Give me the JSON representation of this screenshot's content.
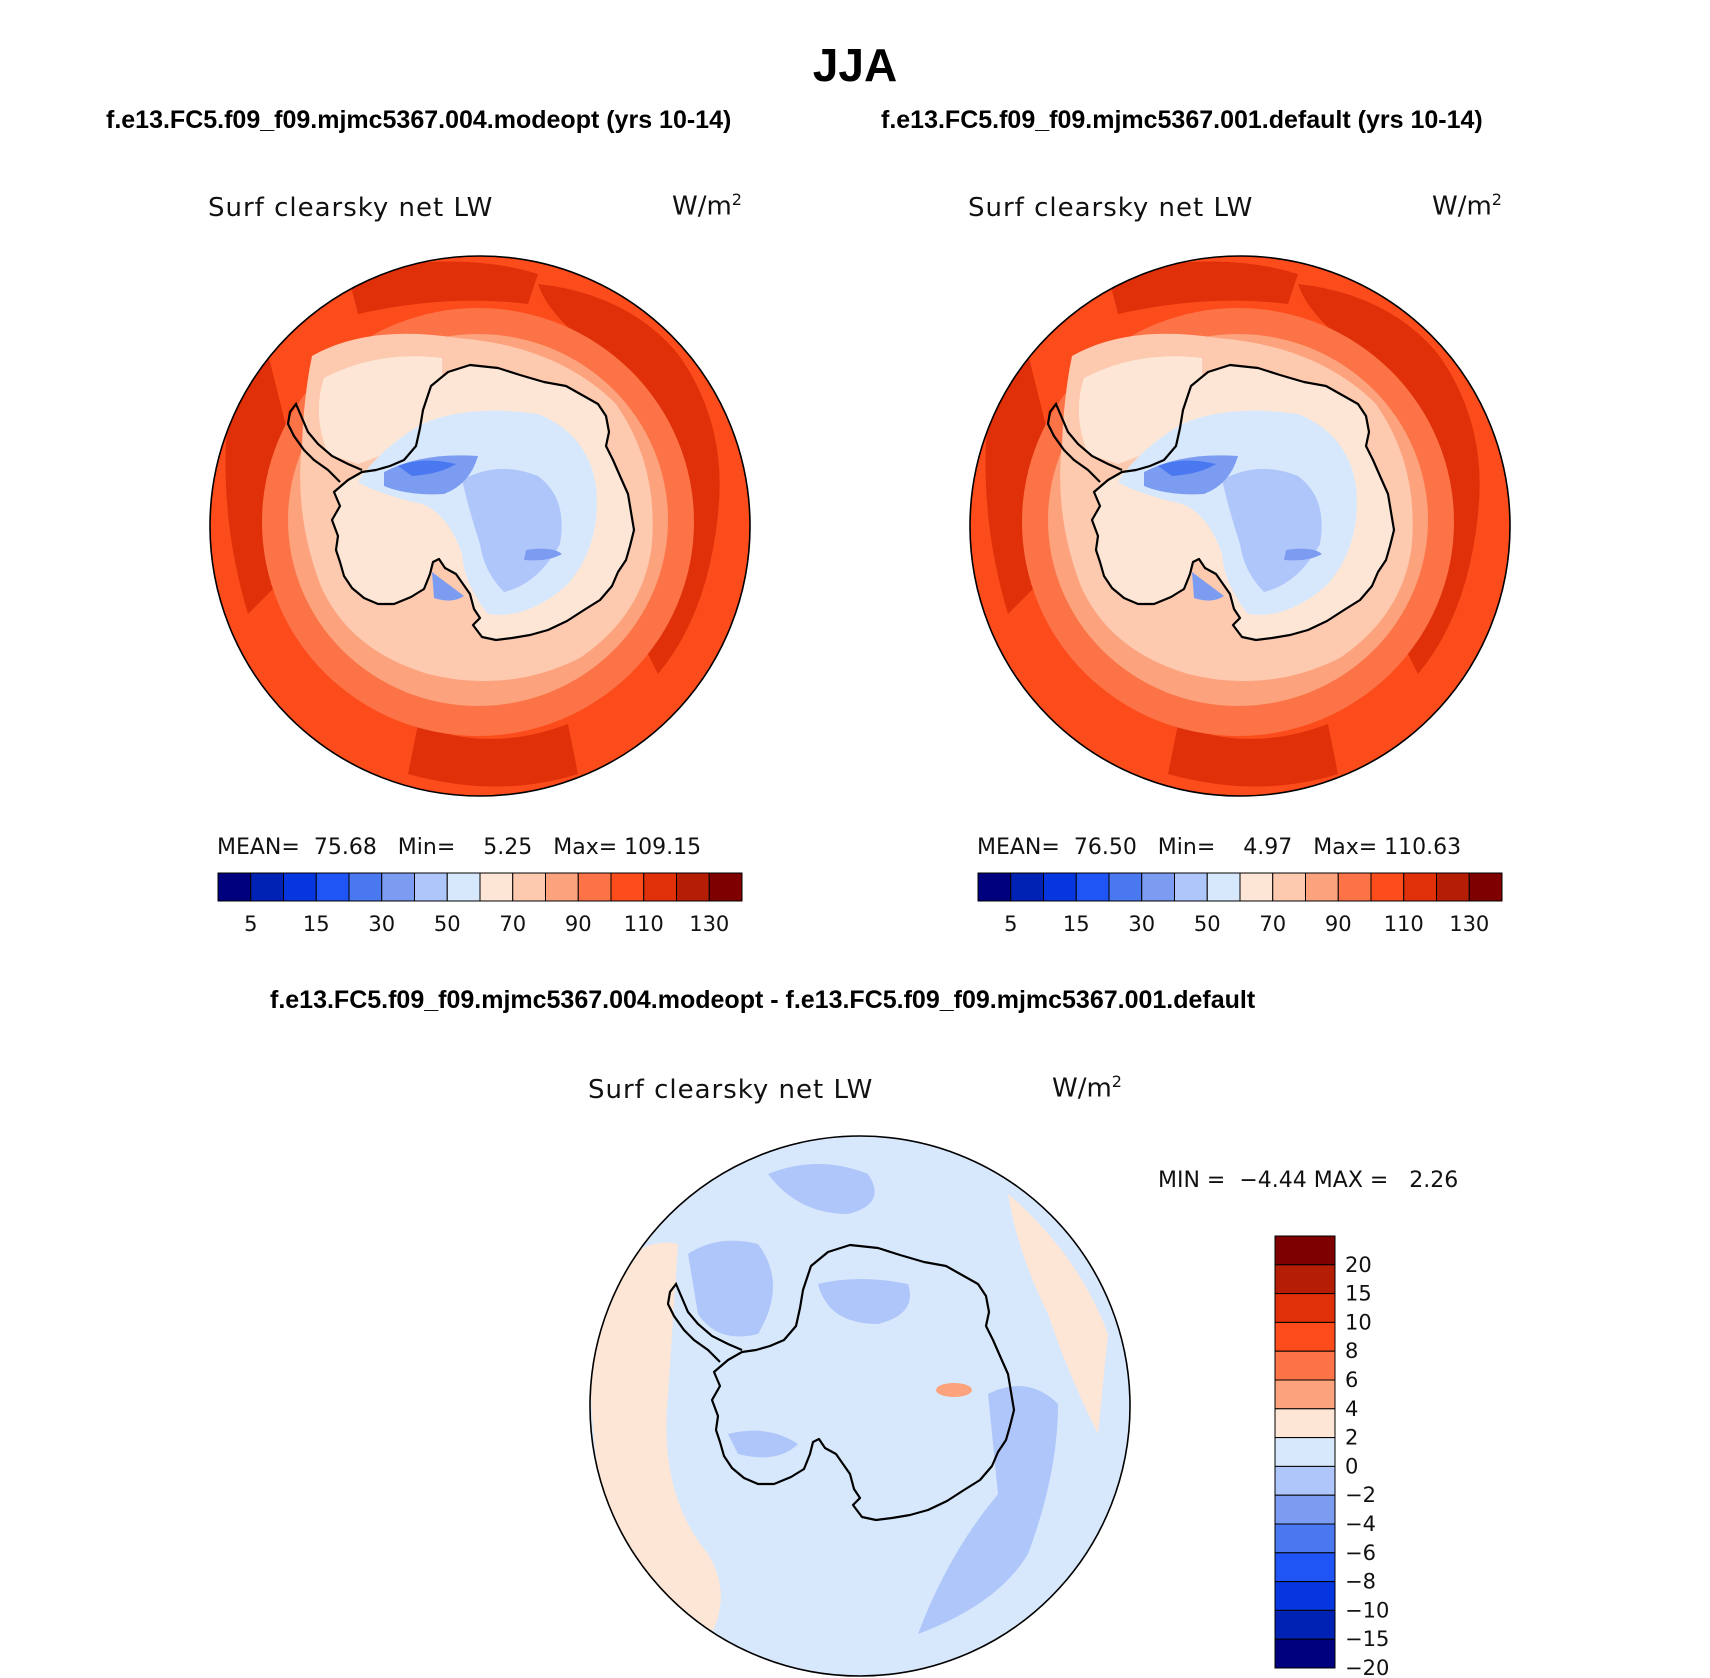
{
  "figure": {
    "title": "JJA",
    "panel_a_case": "f.e13.FC5.f09_f09.mjmc5367.004.modeopt (yrs 10-14)",
    "panel_b_case": "f.e13.FC5.f09_f09.mjmc5367.001.default (yrs 10-14)",
    "diff_case": "f.e13.FC5.f09_f09.mjmc5367.004.modeopt - f.e13.FC5.f09_f09.mjmc5367.001.default",
    "variable": "Surf clearsky net LW",
    "units": "W/m",
    "units_exp": "2"
  },
  "chart_data": [
    {
      "type": "heatmap",
      "name": "modeopt",
      "projection": "south-polar-stereographic",
      "title": "Surf clearsky net LW",
      "units": "W/m^2",
      "stats": {
        "mean_label": "MEAN=",
        "mean": "75.68",
        "min_label": "Min=",
        "min": "5.25",
        "max_label": "Max=",
        "max": "109.15"
      },
      "levels": [
        5,
        10,
        15,
        20,
        30,
        40,
        50,
        60,
        70,
        80,
        90,
        100,
        110,
        120,
        130
      ],
      "tick_labels": [
        "5",
        "15",
        "30",
        "50",
        "70",
        "90",
        "110",
        "130"
      ],
      "tick_levels": [
        5,
        15,
        30,
        50,
        70,
        90,
        110,
        130
      ],
      "colors": [
        "#00007f",
        "#0022b4",
        "#0636e0",
        "#1f55f5",
        "#4a78f0",
        "#7c9cf2",
        "#afc6fa",
        "#d8e8fc",
        "#fde6d6",
        "#fdc9af",
        "#fca27d",
        "#fb7346",
        "#fc4c1b",
        "#e0300a",
        "#b51e04",
        "#7f0000"
      ],
      "regions": {
        "ocean_far": 110,
        "ocean_mid": 100,
        "ocean_near": 90,
        "sea_ice_edge": 80,
        "sea_ice": 70,
        "coast_ice": 60,
        "plateau": 50,
        "interior": 40,
        "deep_interior": 30,
        "core": 20
      }
    },
    {
      "type": "heatmap",
      "name": "default",
      "projection": "south-polar-stereographic",
      "title": "Surf clearsky net LW",
      "units": "W/m^2",
      "stats": {
        "mean_label": "MEAN=",
        "mean": "76.50",
        "min_label": "Min=",
        "min": "4.97",
        "max_label": "Max=",
        "max": "110.63"
      },
      "levels": [
        5,
        10,
        15,
        20,
        30,
        40,
        50,
        60,
        70,
        80,
        90,
        100,
        110,
        120,
        130
      ],
      "tick_labels": [
        "5",
        "15",
        "30",
        "50",
        "70",
        "90",
        "110",
        "130"
      ],
      "tick_levels": [
        5,
        15,
        30,
        50,
        70,
        90,
        110,
        130
      ],
      "colors": [
        "#00007f",
        "#0022b4",
        "#0636e0",
        "#1f55f5",
        "#4a78f0",
        "#7c9cf2",
        "#afc6fa",
        "#d8e8fc",
        "#fde6d6",
        "#fdc9af",
        "#fca27d",
        "#fb7346",
        "#fc4c1b",
        "#e0300a",
        "#b51e04",
        "#7f0000"
      ],
      "regions": {
        "ocean_far": 110,
        "ocean_mid": 100,
        "ocean_near": 90,
        "sea_ice_edge": 80,
        "sea_ice": 70,
        "coast_ice": 60,
        "plateau": 50,
        "interior": 40,
        "deep_interior": 30,
        "core": 20
      }
    },
    {
      "type": "heatmap",
      "name": "difference",
      "projection": "south-polar-stereographic",
      "title": "Surf clearsky net LW",
      "units": "W/m^2",
      "stats": {
        "min_label": "MIN =",
        "min": "−4.44",
        "max_label": "MAX =",
        "max": "2.26"
      },
      "levels": [
        -20,
        -15,
        -10,
        -8,
        -6,
        -4,
        -2,
        0,
        2,
        4,
        6,
        8,
        10,
        15,
        20
      ],
      "tick_labels": [
        "20",
        "15",
        "10",
        "8",
        "6",
        "4",
        "2",
        "0",
        "−2",
        "−4",
        "−6",
        "−8",
        "−10",
        "−15",
        "−20"
      ],
      "colors": [
        "#7f0000",
        "#b51e04",
        "#e0300a",
        "#fc4c1b",
        "#fb7346",
        "#fca27d",
        "#fde6d6",
        "#d8e8fc",
        "#afc6fa",
        "#7c9cf2",
        "#4a78f0",
        "#1f55f5",
        "#0636e0",
        "#0022b4",
        "#00007f"
      ],
      "regions": {
        "background": -1,
        "positive_patches": 1,
        "negative_bands": -3,
        "strong_negative": -5
      }
    }
  ]
}
